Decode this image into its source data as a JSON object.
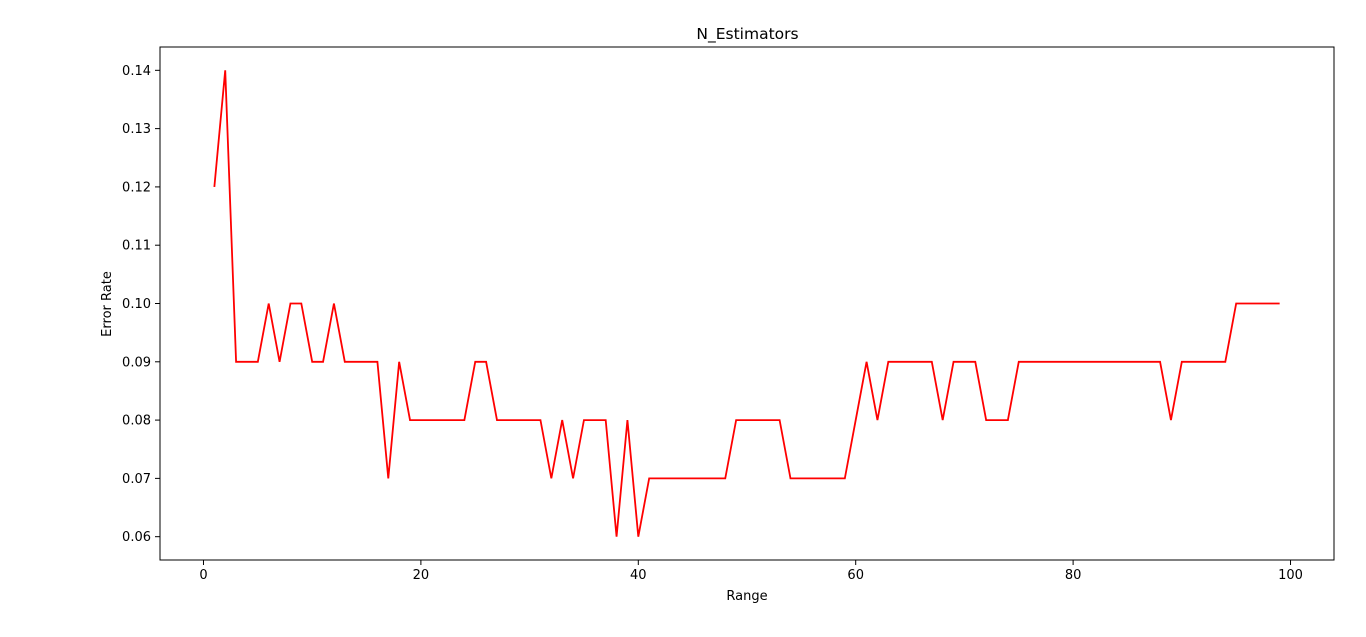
{
  "chart_data": {
    "type": "line",
    "title": "N_Estimators",
    "xlabel": "Range",
    "ylabel": "Error Rate",
    "xlim": [
      -4,
      104
    ],
    "ylim": [
      0.056,
      0.144
    ],
    "xticks": [
      0,
      20,
      40,
      60,
      80,
      100
    ],
    "xtick_labels": [
      "0",
      "20",
      "40",
      "60",
      "80",
      "100"
    ],
    "yticks": [
      0.06,
      0.07,
      0.08,
      0.09,
      0.1,
      0.11,
      0.12,
      0.13,
      0.14
    ],
    "ytick_labels": [
      "0.06",
      "0.07",
      "0.08",
      "0.09",
      "0.10",
      "0.11",
      "0.12",
      "0.13",
      "0.14"
    ],
    "grid": false,
    "series": [
      {
        "color": "#ff0000",
        "x": [
          1,
          2,
          3,
          4,
          5,
          6,
          7,
          8,
          9,
          10,
          11,
          12,
          13,
          14,
          15,
          16,
          17,
          18,
          19,
          20,
          21,
          22,
          23,
          24,
          25,
          26,
          27,
          28,
          29,
          30,
          31,
          32,
          33,
          34,
          35,
          36,
          37,
          38,
          39,
          40,
          41,
          42,
          43,
          44,
          45,
          46,
          47,
          48,
          49,
          50,
          51,
          52,
          53,
          54,
          55,
          56,
          57,
          58,
          59,
          60,
          61,
          62,
          63,
          64,
          65,
          66,
          67,
          68,
          69,
          70,
          71,
          72,
          73,
          74,
          75,
          76,
          77,
          78,
          79,
          80,
          81,
          82,
          83,
          84,
          85,
          86,
          87,
          88,
          89,
          90,
          91,
          92,
          93,
          94,
          95,
          96,
          97,
          98,
          99
        ],
        "y": [
          0.12,
          0.14,
          0.09,
          0.09,
          0.09,
          0.1,
          0.09,
          0.1,
          0.1,
          0.09,
          0.09,
          0.1,
          0.09,
          0.09,
          0.09,
          0.09,
          0.07,
          0.09,
          0.08,
          0.08,
          0.08,
          0.08,
          0.08,
          0.08,
          0.09,
          0.09,
          0.08,
          0.08,
          0.08,
          0.08,
          0.08,
          0.07,
          0.08,
          0.07,
          0.08,
          0.08,
          0.08,
          0.06,
          0.08,
          0.06,
          0.07,
          0.07,
          0.07,
          0.07,
          0.07,
          0.07,
          0.07,
          0.07,
          0.08,
          0.08,
          0.08,
          0.08,
          0.08,
          0.07,
          0.07,
          0.07,
          0.07,
          0.07,
          0.07,
          0.08,
          0.09,
          0.08,
          0.09,
          0.09,
          0.09,
          0.09,
          0.09,
          0.08,
          0.09,
          0.09,
          0.09,
          0.08,
          0.08,
          0.08,
          0.09,
          0.09,
          0.09,
          0.09,
          0.09,
          0.09,
          0.09,
          0.09,
          0.09,
          0.09,
          0.09,
          0.09,
          0.09,
          0.09,
          0.08,
          0.09,
          0.09,
          0.09,
          0.09,
          0.09,
          0.1,
          0.1,
          0.1,
          0.1,
          0.1
        ]
      }
    ]
  }
}
